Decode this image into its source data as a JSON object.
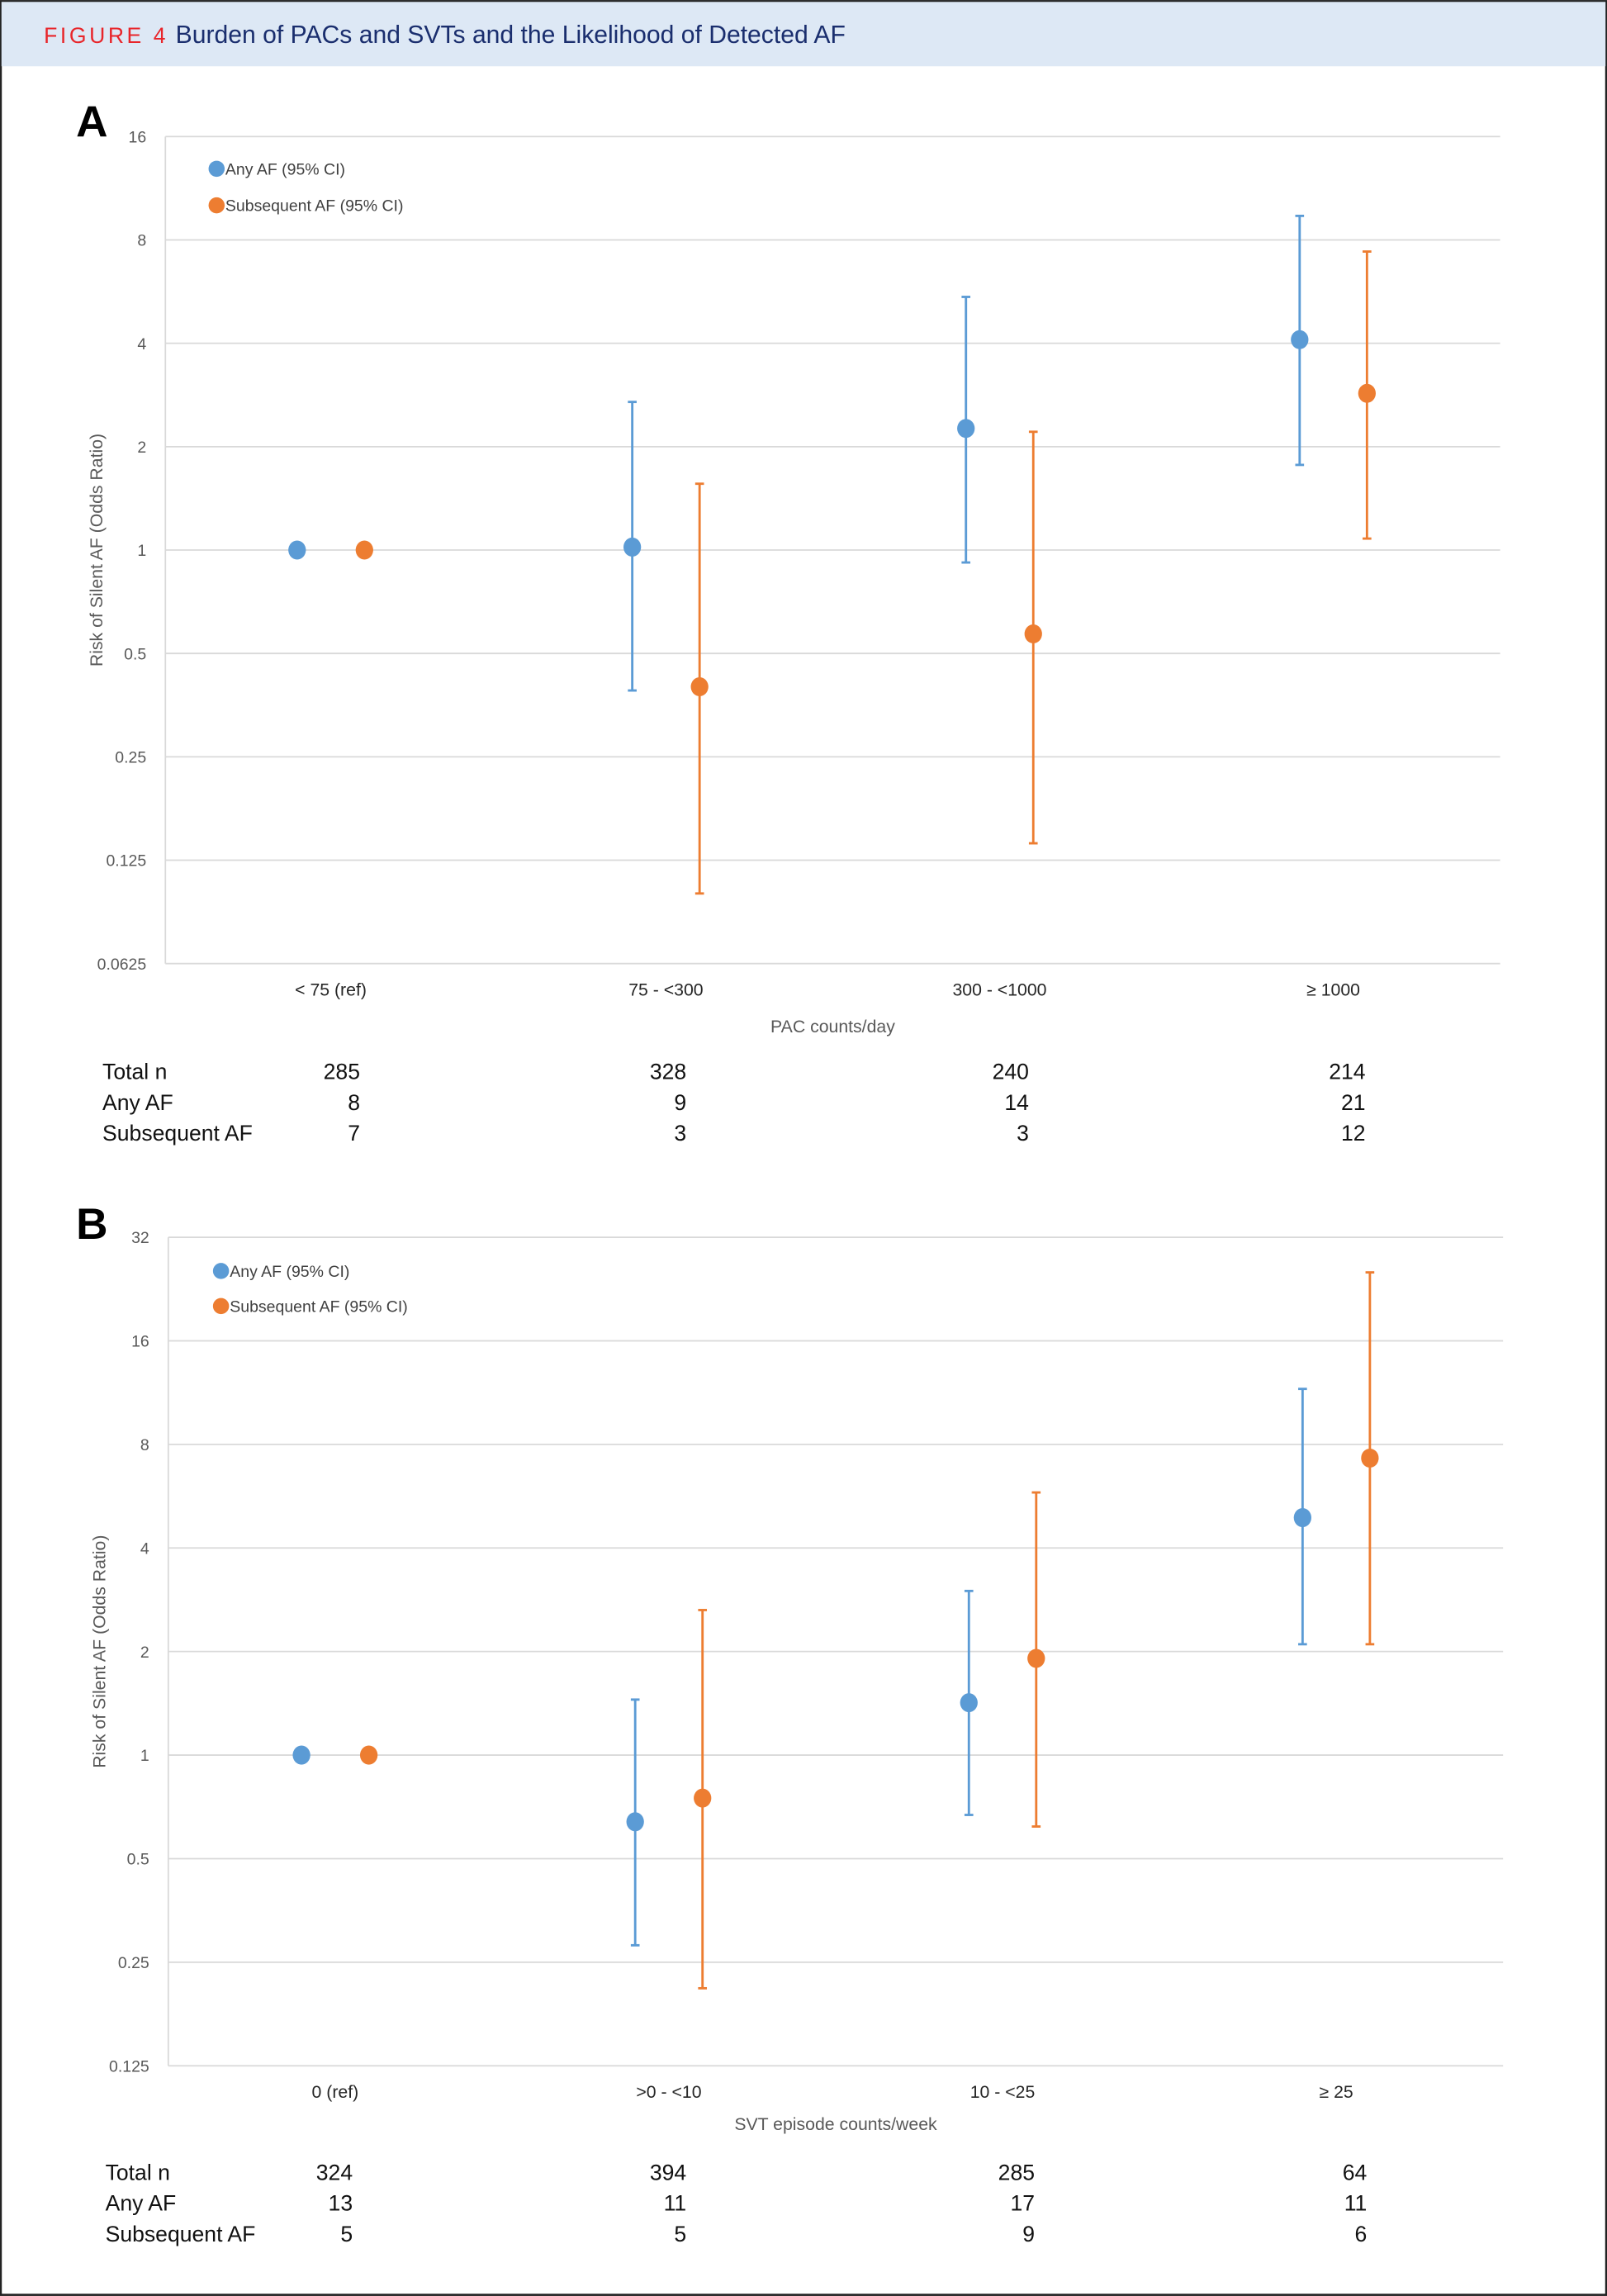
{
  "header": {
    "figure_label": "FIGURE 4",
    "title": "Burden of PACs and SVTs and the Likelihood of Detected AF",
    "figure_label_color": "#e8252a",
    "title_color": "#1a2e6e",
    "band_color": "#dde8f5"
  },
  "colors": {
    "any_af": "#5b9bd5",
    "subsequent_af": "#ed7d31"
  },
  "chart_data": [
    {
      "panel": "A",
      "type": "scatter",
      "error_bars": true,
      "y_scale": "log2",
      "ylabel": "Risk of Silent AF (Odds Ratio)",
      "xlabel": "PAC counts/day",
      "yticks": [
        "16",
        "8",
        "4",
        "2",
        "1",
        "0.5",
        "0.25",
        "0.125",
        "0.0625"
      ],
      "ylim": [
        0.0625,
        16
      ],
      "grid": true,
      "legend_placement": "top-left",
      "categories": [
        "< 75 (ref)",
        "75 - <300",
        "300 - <1000",
        "≥ 1000"
      ],
      "series": [
        {
          "name": "Any AF (95% CI)",
          "values": [
            1,
            1.02,
            2.26,
            4.1
          ],
          "lower": [
            null,
            0.39,
            0.92,
            1.77
          ],
          "upper": [
            null,
            2.7,
            5.46,
            9.4
          ]
        },
        {
          "name": "Subsequent AF (95% CI)",
          "values": [
            1,
            0.4,
            0.57,
            2.86
          ],
          "lower": [
            null,
            0.1,
            0.14,
            1.08
          ],
          "upper": [
            null,
            1.56,
            2.21,
            7.4
          ]
        }
      ],
      "table": {
        "rows": [
          {
            "label": "Total n",
            "values": [
              "285",
              "328",
              "240",
              "214"
            ]
          },
          {
            "label": "Any AF",
            "values": [
              "8",
              "9",
              "14",
              "21"
            ]
          },
          {
            "label": "Subsequent AF",
            "values": [
              "7",
              "3",
              "3",
              "12"
            ]
          }
        ]
      }
    },
    {
      "panel": "B",
      "type": "scatter",
      "error_bars": true,
      "y_scale": "log2",
      "ylabel": "Risk of Silent AF (Odds Ratio)",
      "xlabel": "SVT episode counts/week",
      "yticks": [
        "32",
        "16",
        "8",
        "4",
        "2",
        "1",
        "0.5",
        "0.25",
        "0.125"
      ],
      "ylim": [
        0.125,
        32
      ],
      "grid": true,
      "legend_placement": "top-left",
      "categories": [
        "0 (ref)",
        ">0 - <10",
        "10 - <25",
        "≥ 25"
      ],
      "series": [
        {
          "name": "Any AF (95% CI)",
          "values": [
            1,
            0.64,
            1.42,
            4.9
          ],
          "lower": [
            null,
            0.28,
            0.67,
            2.1
          ],
          "upper": [
            null,
            1.45,
            3.0,
            11.6
          ]
        },
        {
          "name": "Subsequent AF (95% CI)",
          "values": [
            1,
            0.75,
            1.91,
            7.3
          ],
          "lower": [
            null,
            0.21,
            0.62,
            2.1
          ],
          "upper": [
            null,
            2.64,
            5.8,
            25.3
          ]
        }
      ],
      "table": {
        "rows": [
          {
            "label": "Total n",
            "values": [
              "324",
              "394",
              "285",
              "64"
            ]
          },
          {
            "label": "Any AF",
            "values": [
              "13",
              "11",
              "17",
              "11"
            ]
          },
          {
            "label": "Subsequent AF",
            "values": [
              "5",
              "5",
              "9",
              "6"
            ]
          }
        ]
      }
    }
  ]
}
